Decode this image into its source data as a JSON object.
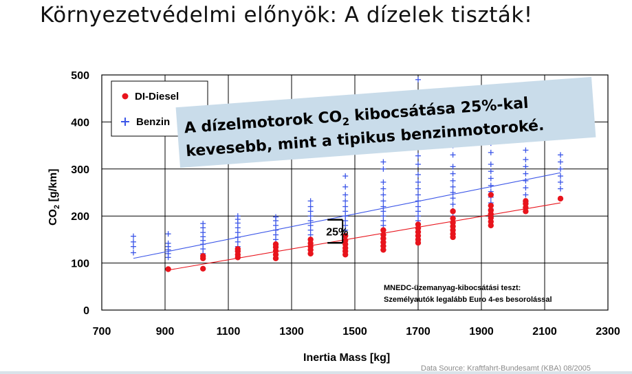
{
  "slide": {
    "title": "Környezetvédelmi előnyök: A dízelek tiszták!"
  },
  "callout": {
    "line1_a": "A dízelmotorok CO",
    "line1_sub": "2",
    "line1_b": " kibocsátása 25%-kal",
    "line2": "kevesebb, mint a tipikus benzinmotoroké."
  },
  "colors": {
    "diesel": "#e8141c",
    "benzin": "#3a55e8",
    "callout_bg": "#c9dcea"
  },
  "chart_data": {
    "type": "scatter",
    "xlabel": "Inertia Mass [kg]",
    "ylabel_main": "CO",
    "ylabel_sub": "2",
    "ylabel_unit": " [g/km]",
    "xlim": [
      700,
      2300
    ],
    "ylim": [
      0,
      500
    ],
    "xticks": [
      "700",
      "900",
      "1100",
      "1300",
      "1500",
      "1700",
      "1900",
      "2100",
      "2300"
    ],
    "yticks": [
      "0",
      "100",
      "200",
      "300",
      "400",
      "500"
    ],
    "grid": true,
    "legend_placement": "top-left",
    "series": [
      {
        "name": "DI-Diesel",
        "marker": "circle",
        "points": [
          [
            910,
            87
          ],
          [
            1020,
            88
          ],
          [
            1020,
            110
          ],
          [
            1020,
            115
          ],
          [
            1130,
            112
          ],
          [
            1130,
            118
          ],
          [
            1130,
            125
          ],
          [
            1130,
            130
          ],
          [
            1250,
            110
          ],
          [
            1250,
            118
          ],
          [
            1250,
            126
          ],
          [
            1250,
            134
          ],
          [
            1250,
            140
          ],
          [
            1360,
            120
          ],
          [
            1360,
            128
          ],
          [
            1360,
            135
          ],
          [
            1360,
            142
          ],
          [
            1360,
            150
          ],
          [
            1470,
            118
          ],
          [
            1470,
            125
          ],
          [
            1470,
            132
          ],
          [
            1470,
            140
          ],
          [
            1470,
            148
          ],
          [
            1470,
            158
          ],
          [
            1590,
            128
          ],
          [
            1590,
            136
          ],
          [
            1590,
            144
          ],
          [
            1590,
            152
          ],
          [
            1590,
            160
          ],
          [
            1590,
            170
          ],
          [
            1700,
            143
          ],
          [
            1700,
            150
          ],
          [
            1700,
            158
          ],
          [
            1700,
            166
          ],
          [
            1700,
            174
          ],
          [
            1700,
            182
          ],
          [
            1810,
            155
          ],
          [
            1810,
            162
          ],
          [
            1810,
            170
          ],
          [
            1810,
            178
          ],
          [
            1810,
            186
          ],
          [
            1810,
            195
          ],
          [
            1810,
            210
          ],
          [
            1930,
            180
          ],
          [
            1930,
            188
          ],
          [
            1930,
            196
          ],
          [
            1930,
            204
          ],
          [
            1930,
            212
          ],
          [
            1930,
            222
          ],
          [
            1930,
            245
          ],
          [
            2040,
            210
          ],
          [
            2040,
            218
          ],
          [
            2040,
            226
          ],
          [
            2040,
            232
          ],
          [
            2150,
            237
          ]
        ]
      },
      {
        "name": "Benzin",
        "marker": "plus",
        "points": [
          [
            800,
            122
          ],
          [
            800,
            135
          ],
          [
            800,
            145
          ],
          [
            800,
            157
          ],
          [
            910,
            112
          ],
          [
            910,
            120
          ],
          [
            910,
            128
          ],
          [
            910,
            135
          ],
          [
            910,
            142
          ],
          [
            910,
            162
          ],
          [
            1020,
            120
          ],
          [
            1020,
            130
          ],
          [
            1020,
            140
          ],
          [
            1020,
            148
          ],
          [
            1020,
            156
          ],
          [
            1020,
            165
          ],
          [
            1020,
            175
          ],
          [
            1020,
            184
          ],
          [
            1130,
            125
          ],
          [
            1130,
            135
          ],
          [
            1130,
            145
          ],
          [
            1130,
            155
          ],
          [
            1130,
            165
          ],
          [
            1130,
            175
          ],
          [
            1130,
            185
          ],
          [
            1130,
            193
          ],
          [
            1130,
            200
          ],
          [
            1250,
            140
          ],
          [
            1250,
            150
          ],
          [
            1250,
            160
          ],
          [
            1250,
            170
          ],
          [
            1250,
            180
          ],
          [
            1250,
            190
          ],
          [
            1250,
            198
          ],
          [
            1360,
            150
          ],
          [
            1360,
            160
          ],
          [
            1360,
            170
          ],
          [
            1360,
            180
          ],
          [
            1360,
            190
          ],
          [
            1360,
            200
          ],
          [
            1360,
            210
          ],
          [
            1360,
            220
          ],
          [
            1360,
            232
          ],
          [
            1470,
            170
          ],
          [
            1470,
            180
          ],
          [
            1470,
            190
          ],
          [
            1470,
            200
          ],
          [
            1470,
            210
          ],
          [
            1470,
            220
          ],
          [
            1470,
            232
          ],
          [
            1470,
            245
          ],
          [
            1470,
            262
          ],
          [
            1470,
            285
          ],
          [
            1590,
            170
          ],
          [
            1590,
            180
          ],
          [
            1590,
            190
          ],
          [
            1590,
            200
          ],
          [
            1590,
            210
          ],
          [
            1590,
            220
          ],
          [
            1590,
            232
          ],
          [
            1590,
            245
          ],
          [
            1590,
            258
          ],
          [
            1590,
            272
          ],
          [
            1590,
            300
          ],
          [
            1590,
            315
          ],
          [
            1700,
            190
          ],
          [
            1700,
            200
          ],
          [
            1700,
            210
          ],
          [
            1700,
            220
          ],
          [
            1700,
            232
          ],
          [
            1700,
            245
          ],
          [
            1700,
            258
          ],
          [
            1700,
            272
          ],
          [
            1700,
            288
          ],
          [
            1700,
            310
          ],
          [
            1700,
            328
          ],
          [
            1700,
            490
          ],
          [
            1810,
            200
          ],
          [
            1810,
            212
          ],
          [
            1810,
            225
          ],
          [
            1810,
            238
          ],
          [
            1810,
            250
          ],
          [
            1810,
            262
          ],
          [
            1810,
            275
          ],
          [
            1810,
            290
          ],
          [
            1810,
            305
          ],
          [
            1810,
            330
          ],
          [
            1810,
            350
          ],
          [
            1930,
            215
          ],
          [
            1930,
            228
          ],
          [
            1930,
            240
          ],
          [
            1930,
            252
          ],
          [
            1930,
            265
          ],
          [
            1930,
            280
          ],
          [
            1930,
            295
          ],
          [
            1930,
            310
          ],
          [
            1930,
            335
          ],
          [
            1930,
            355
          ],
          [
            2040,
            230
          ],
          [
            2040,
            245
          ],
          [
            2040,
            260
          ],
          [
            2040,
            275
          ],
          [
            2040,
            290
          ],
          [
            2040,
            305
          ],
          [
            2040,
            320
          ],
          [
            2040,
            340
          ],
          [
            2040,
            365
          ],
          [
            2150,
            258
          ],
          [
            2150,
            272
          ],
          [
            2150,
            285
          ],
          [
            2150,
            300
          ],
          [
            2150,
            315
          ],
          [
            2150,
            330
          ]
        ]
      }
    ],
    "trend_lines": [
      {
        "series": "Benzin",
        "from": [
          800,
          110
        ],
        "to": [
          2150,
          292
        ]
      },
      {
        "series": "DI-Diesel",
        "from": [
          910,
          85
        ],
        "to": [
          2150,
          228
        ]
      }
    ],
    "annotations": {
      "gap_label": "25%",
      "gap_x": 1470,
      "gap_y_top": 192,
      "gap_y_bottom": 143,
      "note_line1": "MNEDC-üzemanyag-kibocsátási teszt:",
      "note_line2": "Személyautók legalább Euro 4-es besorolással",
      "source": "Data Source: Kraftfahrt-Bundesamt (KBA) 08/2005"
    }
  }
}
